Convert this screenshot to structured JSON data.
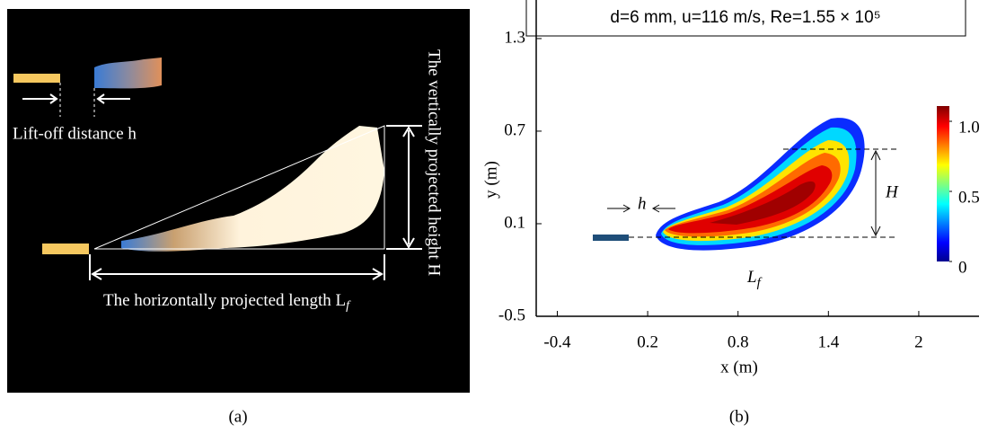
{
  "panel_a": {
    "label": "(a)",
    "liftoff_label": "Lift-off distance h",
    "height_label": "The vertically projected height H",
    "length_label": "The horizontally projected length L",
    "length_subscript": "f"
  },
  "chart_data": {
    "type": "contour",
    "title": "d=6 mm, u=116 m/s, Re=1.55 × 10⁵",
    "x_label": "x (m)",
    "y_label": "y (m)",
    "xlim": [
      -0.54,
      2.4
    ],
    "xticks": [
      -0.4,
      0.2,
      0.8,
      1.4,
      2
    ],
    "ylim": [
      -0.5,
      1.55
    ],
    "yticks": [
      -0.5,
      0.1,
      0.7,
      1.3
    ],
    "colorbar": {
      "colormap": "jet",
      "lim": [
        0,
        1
      ],
      "ticks": [
        0,
        0.5,
        {
          "value": 1,
          "label": "1.0"
        }
      ]
    },
    "annotations": {
      "h": "h",
      "H": "H",
      "L": "L",
      "L_sub": "f"
    },
    "panel_label": "(b)"
  }
}
